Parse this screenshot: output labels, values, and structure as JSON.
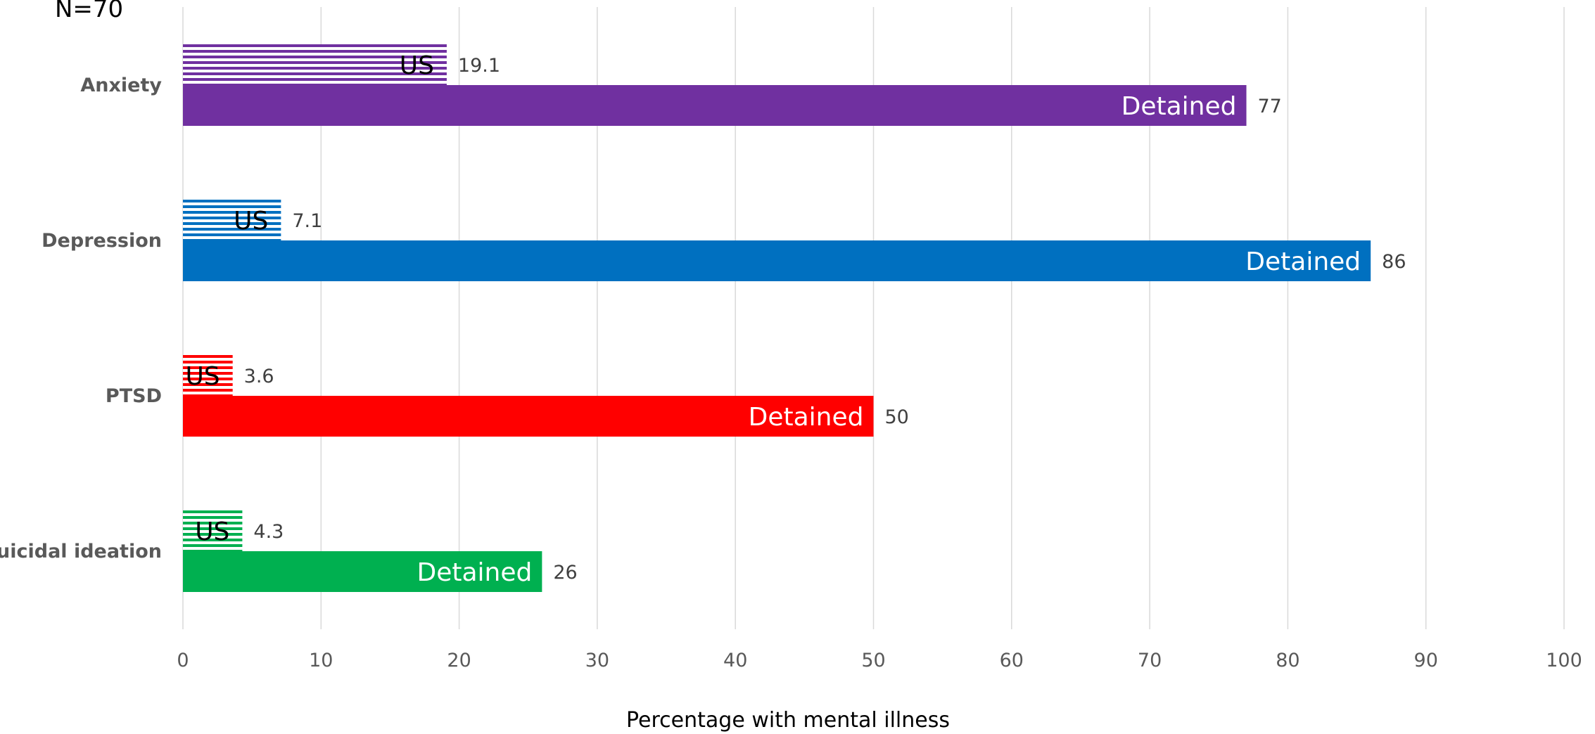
{
  "chart_data": {
    "type": "bar",
    "orientation": "horizontal",
    "annotation": "N=70",
    "categories": [
      "Anxiety",
      "Depression",
      "PTSD",
      "Suicidal ideation"
    ],
    "series": [
      {
        "name": "US",
        "values": [
          19.1,
          7.1,
          3.6,
          4.3
        ],
        "value_labels": [
          "19.1",
          "7.1",
          "3.6",
          "4.3"
        ],
        "bar_label": "US",
        "pattern": "horizontal-stripes"
      },
      {
        "name": "Detained",
        "values": [
          77,
          86,
          50,
          26
        ],
        "value_labels": [
          "77",
          "86",
          "50",
          "26"
        ],
        "bar_label": "Detained",
        "pattern": "solid"
      }
    ],
    "category_colors": [
      "#7030a0",
      "#0070c0",
      "#ff0000",
      "#00b050"
    ],
    "xlabel": "Percentage with mental illness",
    "ylabel": "",
    "xlim": [
      0,
      100
    ],
    "xticks": [
      "0",
      "10",
      "20",
      "30",
      "40",
      "50",
      "60",
      "70",
      "80",
      "90",
      "100"
    ],
    "grid": "vertical",
    "legend": "none"
  }
}
